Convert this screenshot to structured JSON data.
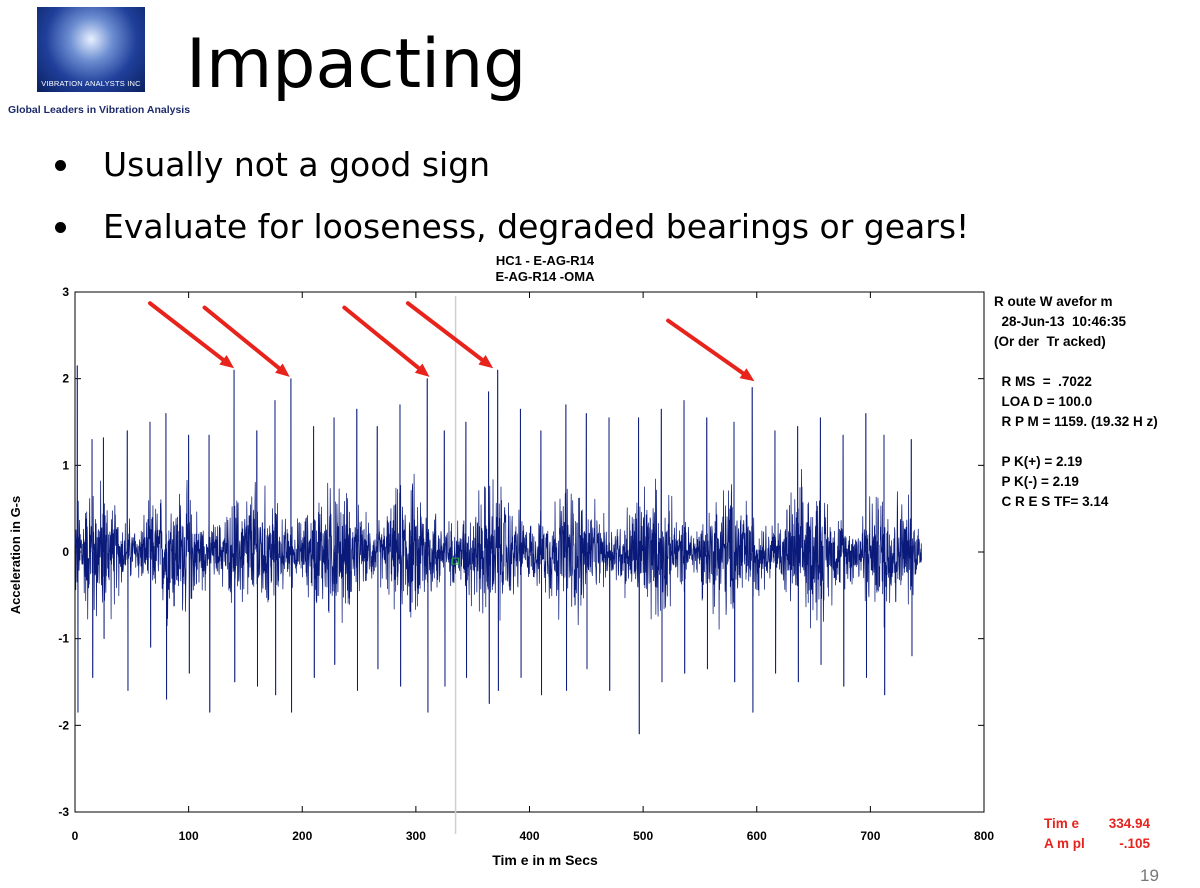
{
  "logo": {
    "name": "VIBRATION ANALYSTS INC",
    "tagline": "Global Leaders in Vibration Analysis"
  },
  "slide": {
    "title": "Impacting",
    "bullets": [
      "Usually not a good sign",
      "Evaluate for looseness, degraded bearings or gears!"
    ],
    "page_number": "19"
  },
  "chart_data": {
    "type": "line",
    "title": [
      "HC1 - E-AG-R14",
      "E-AG-R14 -OMA"
    ],
    "xlabel": "Tim e in m Secs",
    "ylabel": "Acceleration in G-s",
    "xlim": [
      0,
      800
    ],
    "ylim": [
      -3,
      3
    ],
    "x_ticks": [
      0,
      100,
      200,
      300,
      400,
      500,
      600,
      700,
      800
    ],
    "y_ticks": [
      3,
      2,
      1,
      0,
      -1,
      -2,
      -3
    ],
    "x_tick_labels": [
      "0",
      "100",
      "200",
      "300",
      "400",
      "500",
      "600",
      "700",
      "800"
    ],
    "y_tick_labels": [
      "3",
      "2",
      "1",
      "0",
      "-1",
      "-2",
      "-3"
    ],
    "cursor_x": 334.94,
    "series": [
      {
        "color": "#0a1a7a",
        "x_start": 0,
        "x_end": 745,
        "peaks": [
          {
            "x": 2,
            "y": 2.15
          },
          {
            "x": 2.6,
            "y": -1.85
          },
          {
            "x": 15,
            "y": 1.3
          },
          {
            "x": 15.6,
            "y": -1.45
          },
          {
            "x": 25,
            "y": 1.32
          },
          {
            "x": 25.6,
            "y": -1.0
          },
          {
            "x": 46,
            "y": 1.4
          },
          {
            "x": 46.6,
            "y": -1.6
          },
          {
            "x": 66,
            "y": 1.5
          },
          {
            "x": 66.6,
            "y": -1.1
          },
          {
            "x": 80,
            "y": 1.6
          },
          {
            "x": 80.6,
            "y": -1.7
          },
          {
            "x": 100,
            "y": 1.35
          },
          {
            "x": 100.6,
            "y": -1.4
          },
          {
            "x": 118,
            "y": 1.35
          },
          {
            "x": 118.6,
            "y": -1.85
          },
          {
            "x": 140,
            "y": 2.1
          },
          {
            "x": 140.6,
            "y": -1.5
          },
          {
            "x": 160,
            "y": 1.4
          },
          {
            "x": 160.6,
            "y": -1.55
          },
          {
            "x": 176,
            "y": 1.75
          },
          {
            "x": 176.6,
            "y": -1.65
          },
          {
            "x": 190,
            "y": 2.0
          },
          {
            "x": 190.6,
            "y": -1.85
          },
          {
            "x": 210,
            "y": 1.45
          },
          {
            "x": 210.6,
            "y": -1.45
          },
          {
            "x": 228,
            "y": 1.55
          },
          {
            "x": 228.6,
            "y": -1.3
          },
          {
            "x": 248,
            "y": 1.65
          },
          {
            "x": 248.6,
            "y": -1.6
          },
          {
            "x": 266,
            "y": 1.45
          },
          {
            "x": 266.6,
            "y": -1.35
          },
          {
            "x": 286,
            "y": 1.7
          },
          {
            "x": 286.6,
            "y": -1.55
          },
          {
            "x": 310,
            "y": 2.0
          },
          {
            "x": 310.6,
            "y": -1.85
          },
          {
            "x": 325,
            "y": 1.4
          },
          {
            "x": 325.6,
            "y": -1.55
          },
          {
            "x": 344,
            "y": 1.5
          },
          {
            "x": 344.6,
            "y": -1.45
          },
          {
            "x": 364,
            "y": 1.85
          },
          {
            "x": 364.6,
            "y": -1.75
          },
          {
            "x": 372,
            "y": 2.1
          },
          {
            "x": 372.6,
            "y": -1.6
          },
          {
            "x": 392,
            "y": 1.65
          },
          {
            "x": 392.6,
            "y": -1.45
          },
          {
            "x": 410,
            "y": 1.4
          },
          {
            "x": 410.6,
            "y": -1.65
          },
          {
            "x": 432,
            "y": 1.7
          },
          {
            "x": 432.6,
            "y": -1.6
          },
          {
            "x": 450,
            "y": 1.6
          },
          {
            "x": 450.6,
            "y": -1.35
          },
          {
            "x": 470,
            "y": 1.55
          },
          {
            "x": 470.6,
            "y": -1.6
          },
          {
            "x": 496,
            "y": 1.55
          },
          {
            "x": 496.6,
            "y": -2.1
          },
          {
            "x": 516,
            "y": 1.65
          },
          {
            "x": 516.6,
            "y": -1.5
          },
          {
            "x": 536,
            "y": 1.75
          },
          {
            "x": 536.6,
            "y": -1.4
          },
          {
            "x": 556,
            "y": 1.55
          },
          {
            "x": 556.6,
            "y": -1.35
          },
          {
            "x": 580,
            "y": 1.5
          },
          {
            "x": 580.6,
            "y": -1.5
          },
          {
            "x": 596,
            "y": 1.9
          },
          {
            "x": 596.6,
            "y": -1.85
          },
          {
            "x": 616,
            "y": 1.4
          },
          {
            "x": 616.6,
            "y": -1.4
          },
          {
            "x": 636,
            "y": 1.45
          },
          {
            "x": 636.6,
            "y": -1.5
          },
          {
            "x": 656,
            "y": 1.55
          },
          {
            "x": 656.6,
            "y": -1.3
          },
          {
            "x": 676,
            "y": 1.35
          },
          {
            "x": 676.6,
            "y": -1.55
          },
          {
            "x": 696,
            "y": 1.6
          },
          {
            "x": 696.6,
            "y": -1.45
          },
          {
            "x": 712,
            "y": 1.35
          },
          {
            "x": 712.6,
            "y": -1.65
          },
          {
            "x": 736,
            "y": 1.3
          },
          {
            "x": 736.6,
            "y": -1.2
          }
        ]
      }
    ],
    "annotations": [
      {
        "type": "arrow",
        "color": "#e8231c",
        "from": {
          "x": 66,
          "y": 2.87
        },
        "to": {
          "x": 140,
          "y": 2.12
        }
      },
      {
        "type": "arrow",
        "color": "#e8231c",
        "from": {
          "x": 114,
          "y": 2.82
        },
        "to": {
          "x": 189,
          "y": 2.02
        }
      },
      {
        "type": "arrow",
        "color": "#e8231c",
        "from": {
          "x": 237,
          "y": 2.82
        },
        "to": {
          "x": 312,
          "y": 2.02
        }
      },
      {
        "type": "arrow",
        "color": "#e8231c",
        "from": {
          "x": 293,
          "y": 2.87
        },
        "to": {
          "x": 368,
          "y": 2.12
        }
      },
      {
        "type": "arrow",
        "color": "#e8231c",
        "from": {
          "x": 522,
          "y": 2.67
        },
        "to": {
          "x": 598,
          "y": 1.97
        }
      }
    ],
    "info_panel": [
      "R oute W avefor m",
      "  28-Jun-13  10:46:35",
      "(Or der  Tr acked)",
      "",
      "  R MS  =  .7022",
      "  LOA D = 100.0",
      "  R P M = 1159. (19.32 H z)",
      "",
      "  P K(+) = 2.19",
      "  P K(-) = 2.19",
      "  C R E S TF= 3.14"
    ],
    "cursor_readout": {
      "time_label": "Tim e",
      "time_value": "334.94",
      "amp_label": "A m pl",
      "amp_value": "-.105",
      "color": "#e8231c"
    }
  }
}
